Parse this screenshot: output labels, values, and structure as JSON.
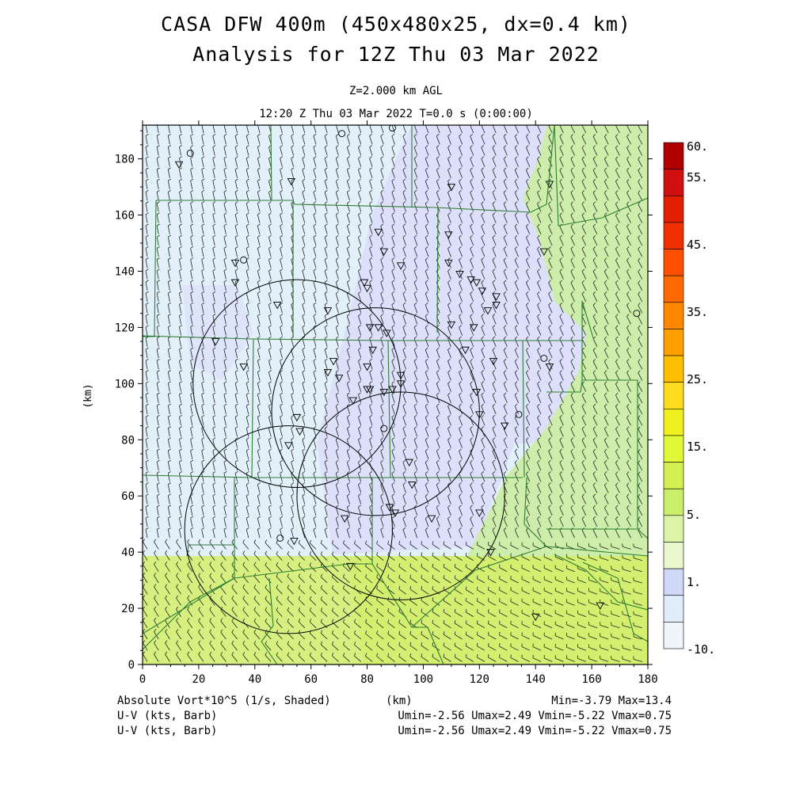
{
  "title_line1": "CASA DFW 400m (450x480x25, dx=0.4 km)",
  "title_line2": "Analysis for 12Z Thu 03 Mar 2022",
  "subtitle_level": "Z=2.000 km AGL",
  "subtitle_time": "12:20 Z Thu 03 Mar 2022   T=0.0 s (0:00:00)",
  "axes": {
    "xlabel": "(km)",
    "ylabel": "(km)",
    "xlim": [
      0,
      180
    ],
    "ylim": [
      0,
      192
    ],
    "x_ticks": [
      "0",
      "20",
      "40",
      "60",
      "80",
      "100",
      "120",
      "140",
      "160",
      "180"
    ],
    "y_ticks": [
      "0",
      "20",
      "40",
      "60",
      "80",
      "100",
      "120",
      "140",
      "160",
      "180"
    ]
  },
  "colorbar": {
    "labels": [
      "60.",
      "55.",
      "45.",
      "35.",
      "25.",
      "15.",
      "5.",
      "1.",
      "-10."
    ],
    "colors": [
      "#b00000",
      "#d01010",
      "#e02000",
      "#f03000",
      "#ff5000",
      "#ff6a00",
      "#ff8800",
      "#ffa000",
      "#ffbe00",
      "#ffdc20",
      "#f0f020",
      "#e0f838",
      "#d4f050",
      "#c8ee6a",
      "#dcf4a8",
      "#e8f8cc",
      "#d0d8f8",
      "#e0ecfa",
      "#eef6fc"
    ]
  },
  "field_colors": {
    "light_blue": "#e2f0fa",
    "lavender": "#dde0fa",
    "light_green": "#cdeeaa",
    "yellow_green": "#d6f07a"
  },
  "footer": {
    "field_name": "Absolute Vort*10^5 (1/s, Shaded)",
    "x_unit": "(km)",
    "minmax": "Min=-3.79 Max=13.4",
    "wind_line1": "U-V (kts, Barb)",
    "wind_stats1": "Umin=-2.56 Umax=2.49 Vmin=-5.22 Vmax=0.75",
    "wind_line2": "U-V (kts, Barb)",
    "wind_stats2": "Umin=-2.56 Umax=2.49 Vmin=-5.22 Vmax=0.75"
  },
  "radar_rings_km": [
    {
      "x": 55,
      "y": 100,
      "r": 37
    },
    {
      "x": 83,
      "y": 90,
      "r": 37
    },
    {
      "x": 92,
      "y": 60,
      "r": 37
    },
    {
      "x": 52,
      "y": 48,
      "r": 37
    }
  ],
  "stations_triangle": [
    [
      13,
      178
    ],
    [
      53,
      172
    ],
    [
      110,
      170
    ],
    [
      145,
      171
    ],
    [
      33,
      143
    ],
    [
      33,
      136
    ],
    [
      48,
      128
    ],
    [
      26,
      115
    ],
    [
      36,
      106
    ],
    [
      55,
      88
    ],
    [
      56,
      83
    ],
    [
      52,
      78
    ],
    [
      66,
      104
    ],
    [
      68,
      108
    ],
    [
      70,
      102
    ],
    [
      75,
      94
    ],
    [
      80,
      106
    ],
    [
      80,
      98
    ],
    [
      81,
      120
    ],
    [
      82,
      112
    ],
    [
      84,
      120
    ],
    [
      87,
      118
    ],
    [
      84,
      154
    ],
    [
      86,
      147
    ],
    [
      92,
      142
    ],
    [
      109,
      153
    ],
    [
      109,
      143
    ],
    [
      113,
      139
    ],
    [
      117,
      137
    ],
    [
      119,
      136
    ],
    [
      121,
      133
    ],
    [
      123,
      126
    ],
    [
      126,
      131
    ],
    [
      126,
      128
    ],
    [
      143,
      147
    ],
    [
      79,
      136
    ],
    [
      80,
      134
    ],
    [
      92,
      103
    ],
    [
      92,
      100
    ],
    [
      89,
      98
    ],
    [
      86,
      97
    ],
    [
      81,
      98
    ],
    [
      95,
      72
    ],
    [
      96,
      64
    ],
    [
      88,
      56
    ],
    [
      90,
      54
    ],
    [
      103,
      52
    ],
    [
      120,
      54
    ],
    [
      124,
      40
    ],
    [
      72,
      52
    ],
    [
      74,
      35
    ],
    [
      54,
      44
    ],
    [
      66,
      126
    ],
    [
      110,
      121
    ],
    [
      118,
      120
    ],
    [
      115,
      112
    ],
    [
      125,
      108
    ],
    [
      119,
      97
    ],
    [
      120,
      89
    ],
    [
      129,
      85
    ],
    [
      145,
      106
    ],
    [
      140,
      17
    ],
    [
      163,
      21
    ]
  ],
  "stations_circle": [
    [
      17,
      182
    ],
    [
      71,
      189
    ],
    [
      89,
      191
    ],
    [
      36,
      144
    ],
    [
      86,
      84
    ],
    [
      49,
      45
    ],
    [
      134,
      89
    ],
    [
      143,
      109
    ],
    [
      176,
      125
    ]
  ]
}
